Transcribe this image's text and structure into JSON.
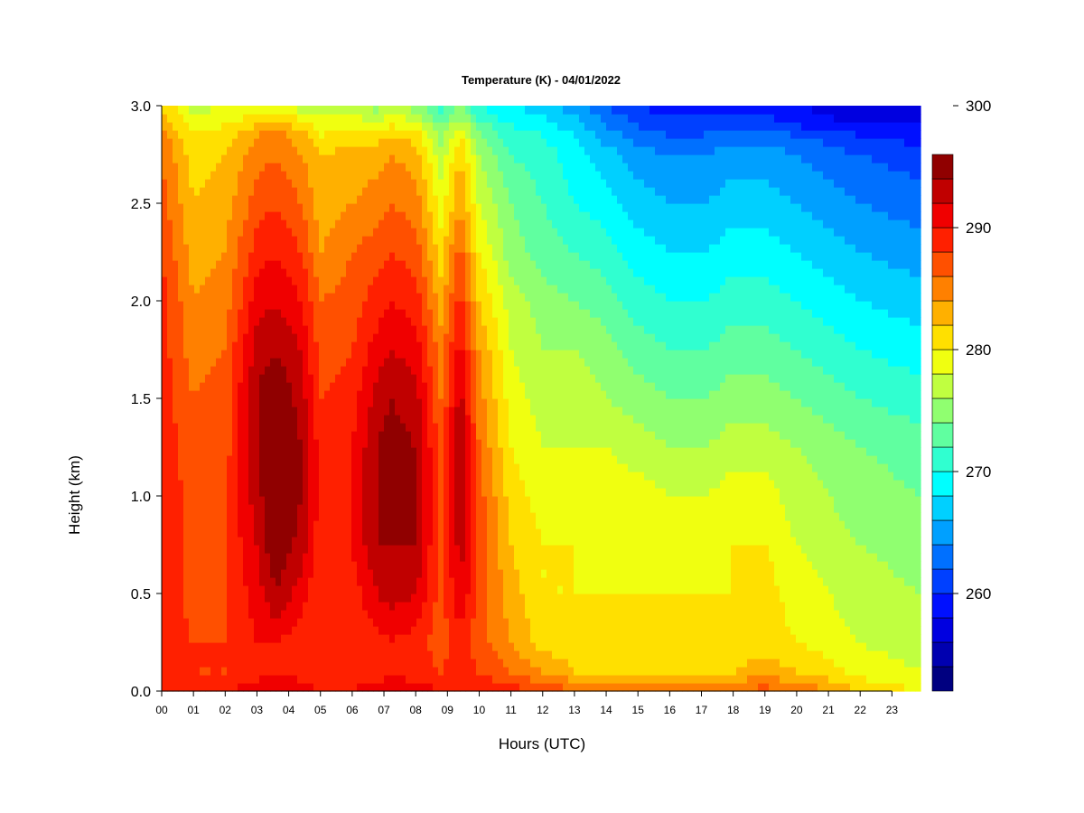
{
  "chart_data": {
    "type": "heatmap",
    "title": "Temperature (K) - 04/01/2022",
    "xlabel": "Hours (UTC)",
    "ylabel": "Height (km)",
    "x_ticks": [
      "00",
      "01",
      "02",
      "03",
      "04",
      "05",
      "06",
      "07",
      "08",
      "09",
      "10",
      "11",
      "12",
      "13",
      "14",
      "15",
      "16",
      "17",
      "18",
      "19",
      "20",
      "21",
      "22",
      "23"
    ],
    "x_range": [
      0,
      23.9
    ],
    "y_ticks": [
      "0.0",
      "0.5",
      "1.0",
      "1.5",
      "2.0",
      "2.5",
      "3.0"
    ],
    "y_range": [
      0,
      3.0
    ],
    "colorbar": {
      "range": [
        252,
        300
      ],
      "step": 2,
      "tick_labels": [
        "260",
        "270",
        "280",
        "290",
        "300"
      ],
      "tick_values": [
        260,
        270,
        280,
        290,
        300
      ],
      "colors": [
        "#000080",
        "#0000b0",
        "#0000e0",
        "#0010ff",
        "#0040ff",
        "#0070ff",
        "#00a0ff",
        "#00d0ff",
        "#00ffff",
        "#30ffd0",
        "#60ff a0",
        "#90ff70",
        "#c0ff40",
        "#f0ff10",
        "#ffe000",
        "#ffb000",
        "#ff8000",
        "#ff5000",
        "#ff2000",
        "#f00000",
        "#c00000",
        "#900000"
      ]
    },
    "heights_km": [
      0.0,
      0.1,
      0.25,
      0.5,
      0.75,
      1.0,
      1.25,
      1.5,
      1.75,
      2.0,
      2.25,
      2.5,
      2.75,
      3.0
    ],
    "hours": [
      0,
      1,
      2,
      3,
      3.6,
      4.4,
      5,
      6,
      6.8,
      7.2,
      8,
      8.8,
      9.4,
      10,
      11,
      12,
      13,
      14,
      15,
      16,
      17,
      18,
      19,
      20,
      21,
      22,
      23.9
    ],
    "values_K": [
      [
        290,
        289,
        289,
        290,
        290,
        290,
        290,
        289,
        289,
        289,
        288,
        287,
        286,
        285,
        284,
        283,
        282
      ],
      [
        289,
        288,
        288,
        287,
        287,
        287,
        286,
        286,
        285,
        284,
        283,
        282,
        281,
        280,
        279,
        278,
        277
      ],
      [
        290,
        288,
        288,
        288,
        288,
        288,
        287,
        287,
        286,
        285,
        284,
        283,
        282,
        281,
        280,
        279,
        278
      ],
      [
        291,
        289,
        290,
        291,
        292,
        293,
        294,
        294,
        293,
        291,
        289,
        287,
        285,
        284,
        282,
        280,
        278
      ],
      [
        292,
        290,
        290,
        294,
        296,
        297,
        297,
        296,
        294,
        292,
        290,
        288,
        286,
        285,
        283,
        281,
        279
      ],
      [
        291,
        289,
        289,
        291,
        293,
        294,
        294,
        293,
        292,
        290,
        288,
        286,
        284,
        283,
        281,
        279,
        277
      ],
      [
        290,
        289,
        288,
        288,
        289,
        289,
        289,
        288,
        287,
        286,
        284,
        283,
        282,
        280,
        279,
        278,
        276
      ],
      [
        290,
        289,
        288,
        289,
        290,
        290,
        290,
        289,
        288,
        287,
        286,
        284,
        283,
        281,
        279,
        278,
        276
      ],
      [
        291,
        289,
        289,
        292,
        294,
        294,
        294,
        293,
        291,
        289,
        287,
        285,
        283,
        281,
        279,
        277,
        275
      ],
      [
        291,
        290,
        290,
        293,
        294,
        295,
        295,
        294,
        292,
        290,
        288,
        286,
        284,
        282,
        280,
        278,
        276
      ],
      [
        291,
        289,
        289,
        292,
        294,
        294,
        294,
        293,
        291,
        289,
        287,
        285,
        283,
        281,
        279,
        277,
        275
      ],
      [
        290,
        288,
        287,
        287,
        287,
        287,
        287,
        286,
        285,
        283,
        281,
        279,
        277,
        275,
        274,
        272,
        271
      ],
      [
        290,
        289,
        289,
        292,
        293,
        294,
        294,
        293,
        291,
        289,
        287,
        284,
        282,
        280,
        278,
        276,
        274
      ],
      [
        290,
        288,
        287,
        287,
        287,
        287,
        286,
        285,
        284,
        282,
        280,
        278,
        276,
        274,
        273,
        271,
        270
      ],
      [
        289,
        286,
        284,
        283,
        282,
        281,
        280,
        279,
        278,
        277,
        275,
        274,
        272,
        271,
        270,
        269,
        268
      ],
      [
        288,
        284,
        281,
        280,
        280,
        279,
        278,
        277,
        276,
        275,
        273,
        272,
        271,
        270,
        269,
        268,
        267
      ],
      [
        286,
        282,
        281,
        280,
        280,
        279,
        278,
        277,
        276,
        274,
        272,
        270,
        269,
        268,
        267,
        266,
        265
      ],
      [
        285,
        282,
        281,
        280,
        279,
        279,
        278,
        276,
        275,
        273,
        271,
        269,
        267,
        265,
        264,
        263,
        262
      ],
      [
        285,
        282,
        281,
        280,
        279,
        279,
        277,
        275,
        273,
        271,
        269,
        267,
        265,
        263,
        262,
        261,
        260
      ],
      [
        285,
        282,
        281,
        280,
        279,
        278,
        276,
        274,
        272,
        270,
        268,
        266,
        264,
        262,
        261,
        260,
        259
      ],
      [
        285,
        282,
        281,
        280,
        279,
        278,
        276,
        274,
        272,
        270,
        268,
        266,
        264,
        262,
        261,
        260,
        259
      ],
      [
        286,
        282,
        281,
        280,
        280,
        279,
        277,
        275,
        273,
        271,
        269,
        267,
        265,
        263,
        261,
        260,
        259
      ],
      [
        287,
        283,
        281,
        281,
        280,
        279,
        277,
        275,
        273,
        271,
        269,
        267,
        265,
        263,
        261,
        260,
        259
      ],
      [
        286,
        282,
        280,
        279,
        278,
        277,
        276,
        274,
        272,
        270,
        268,
        266,
        264,
        262,
        260,
        259,
        258
      ],
      [
        284,
        281,
        279,
        278,
        277,
        276,
        275,
        273,
        271,
        269,
        267,
        265,
        263,
        261,
        259,
        258,
        257
      ],
      [
        282,
        279,
        278,
        277,
        276,
        275,
        274,
        272,
        270,
        268,
        266,
        264,
        262,
        260,
        258,
        257,
        256
      ],
      [
        280,
        278,
        277,
        276,
        275,
        274,
        273,
        271,
        269,
        267,
        265,
        263,
        261,
        259,
        258,
        257,
        256
      ]
    ],
    "values_heights_km": [
      0.0,
      0.1,
      0.25,
      0.5,
      0.75,
      1.0,
      1.25,
      1.5,
      1.75,
      2.0,
      2.25,
      2.5,
      2.75,
      2.85,
      2.9,
      2.95,
      3.0
    ],
    "legend": "right"
  }
}
